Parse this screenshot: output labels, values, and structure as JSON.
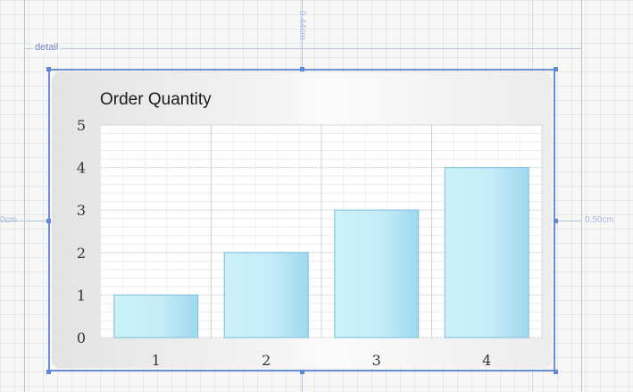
{
  "designer": {
    "band_label": "detail",
    "ruler_top": "0.44cm",
    "ruler_left": "0cm",
    "ruler_right": "0.50cm"
  },
  "chart_data": {
    "type": "bar",
    "title": "Order Quantity",
    "categories": [
      "1",
      "2",
      "3",
      "4"
    ],
    "values": [
      1,
      2,
      3,
      4
    ],
    "ylim": [
      0,
      5
    ],
    "yticks": [
      "0",
      "1",
      "2",
      "3",
      "4",
      "5"
    ],
    "xlabel": "",
    "ylabel": "",
    "grid": true,
    "bar_color": "#bfeaf8",
    "bar_border": "#87c7e2"
  }
}
